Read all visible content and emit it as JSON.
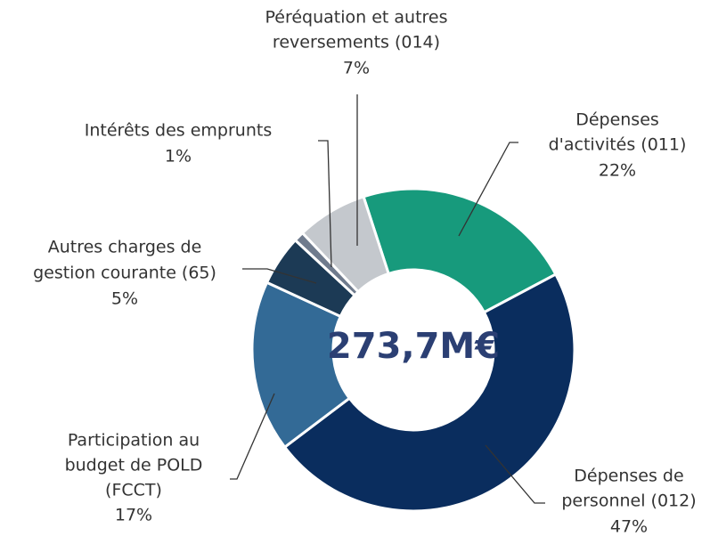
{
  "chart_data": {
    "type": "donut",
    "center_label": "273,7M€",
    "categories": [
      [
        "Dépenses",
        "d'activités (011)"
      ],
      [
        "Dépenses de",
        "personnel (012)"
      ],
      [
        "Participation  au",
        "budget de POLD",
        "(FCCT)"
      ],
      [
        "Autres charges de",
        "gestion courante (65)"
      ],
      [
        "Intérêts des emprunts"
      ],
      [
        "Péréquation et autres",
        "reversements (014)"
      ]
    ],
    "values": [
      22,
      47,
      17,
      5,
      1,
      7
    ],
    "value_labels": [
      "22%",
      "47%",
      "17%",
      "5%",
      "1%",
      "7%"
    ],
    "colors": [
      "#179a7c",
      "#0a2d5e",
      "#336a96",
      "#1c3a55",
      "#6f7b8d",
      "#c4c8cd"
    ]
  }
}
